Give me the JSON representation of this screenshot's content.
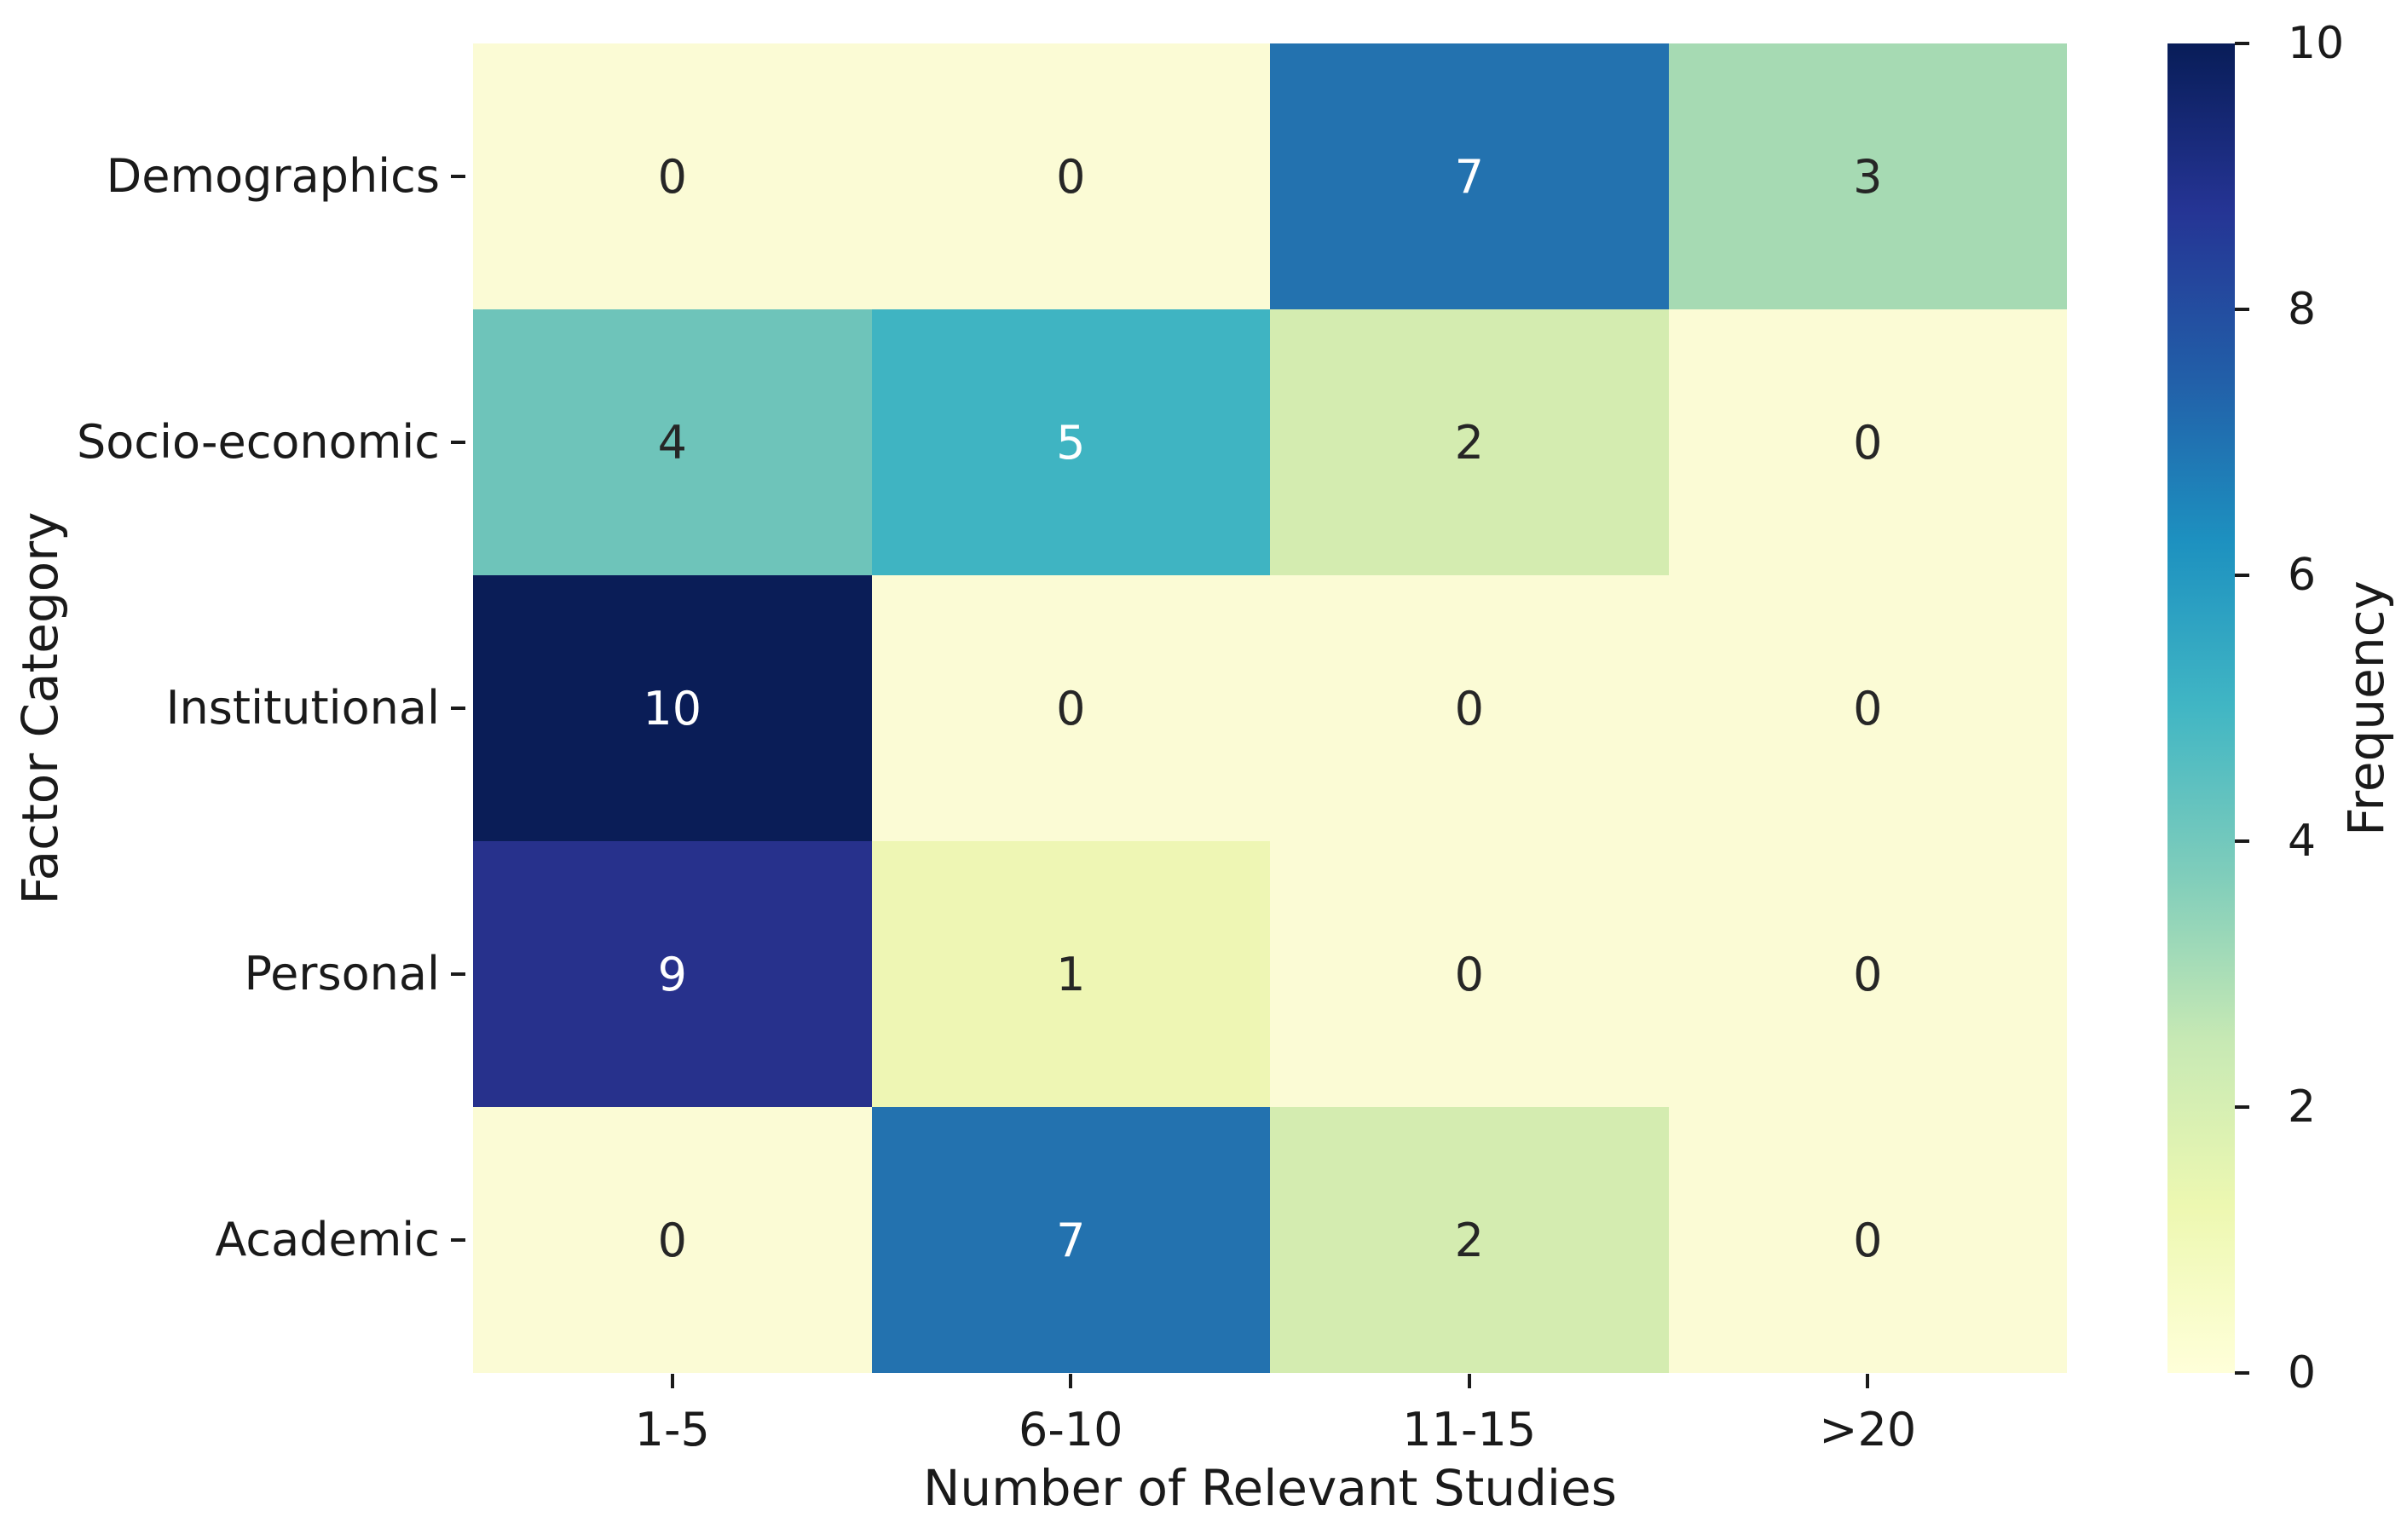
{
  "chart_data": {
    "type": "heatmap",
    "title": "",
    "xlabel": "Number of Relevant Studies",
    "ylabel": "Factor Category",
    "colorbar_label": "Frequency",
    "categories_x": [
      "1-5",
      "6-10",
      "11-15",
      ">20"
    ],
    "categories_y": [
      "Demographics",
      "Socio-economic",
      "Institutional",
      "Personal",
      "Academic"
    ],
    "values": [
      [
        0,
        0,
        7,
        3
      ],
      [
        4,
        5,
        2,
        0
      ],
      [
        10,
        0,
        0,
        0
      ],
      [
        9,
        1,
        0,
        0
      ],
      [
        0,
        7,
        2,
        0
      ]
    ],
    "vmin": 0,
    "vmax": 10,
    "colorbar_ticks": [
      0,
      2,
      4,
      6,
      8,
      10
    ],
    "colormap": "YlGnBu",
    "grid": false,
    "legend_position": "right-colorbar",
    "cell_colors": [
      [
        "#fbfbd5",
        "#fbfbd5",
        "#2372af",
        "#a6dab3"
      ],
      [
        "#6ec4ba",
        "#3fb4c2",
        "#d4ecb0",
        "#fbfbd5"
      ],
      [
        "#0a1d57",
        "#fbfbd5",
        "#fbfbd5",
        "#fbfbd5"
      ],
      [
        "#27318c",
        "#eef6b4",
        "#fbfbd5",
        "#fbfbd5"
      ],
      [
        "#fbfbd5",
        "#2372af",
        "#d4ecb0",
        "#fbfbd5"
      ]
    ],
    "cell_text_colors": [
      [
        "#262626",
        "#262626",
        "#ffffff",
        "#262626"
      ],
      [
        "#262626",
        "#ffffff",
        "#262626",
        "#262626"
      ],
      [
        "#ffffff",
        "#262626",
        "#262626",
        "#262626"
      ],
      [
        "#ffffff",
        "#262626",
        "#262626",
        "#262626"
      ],
      [
        "#262626",
        "#ffffff",
        "#262626",
        "#262626"
      ]
    ],
    "colorbar_gradient_stops_bottom_to_top": [
      "#ffffd9",
      "#edf8b1",
      "#c7e9b4",
      "#7fcdbb",
      "#41b6c4",
      "#1d91c0",
      "#225ea8",
      "#253494",
      "#081d58"
    ],
    "tick_color": "#1a1a1a"
  }
}
